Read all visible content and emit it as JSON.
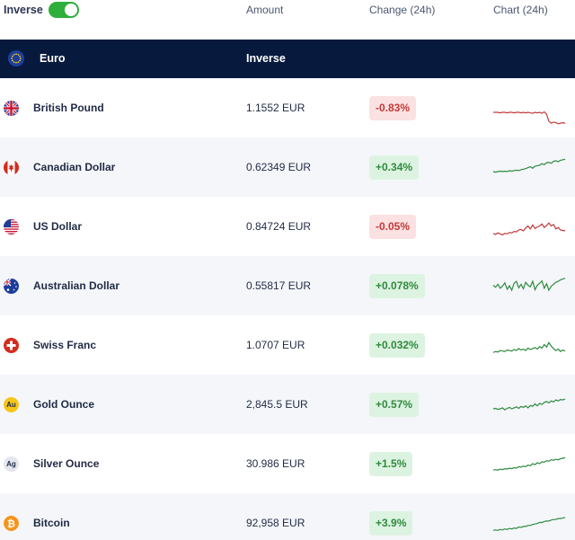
{
  "header": {
    "toggle_label": "Inverse",
    "toggle_on": true,
    "col_amount": "Amount",
    "col_change": "Change (24h)",
    "col_chart": "Chart (24h)"
  },
  "base": {
    "name": "Euro",
    "inverse_label": "Inverse"
  },
  "colors": {
    "navy": "#071a3e",
    "up": "#2e8a3e",
    "down": "#c23a3a",
    "toggle": "#2eaf3c"
  },
  "rows": [
    {
      "name": "British Pound",
      "icon": "uk-flag-icon",
      "amount": "1.1552 EUR",
      "change": "-0.83%",
      "dir": "down",
      "spark": [
        40,
        40,
        40,
        41,
        40,
        40,
        41,
        40,
        40,
        41,
        40,
        40,
        41,
        40,
        41,
        40,
        41,
        42,
        40,
        41,
        40,
        42,
        39,
        44,
        58,
        62,
        60,
        61,
        63,
        62,
        61,
        62
      ]
    },
    {
      "name": "Canadian Dollar",
      "icon": "canada-flag-icon",
      "amount": "0.62349 EUR",
      "change": "+0.34%",
      "dir": "up",
      "spark": [
        40,
        41,
        40,
        39,
        40,
        39,
        40,
        38,
        39,
        38,
        37,
        38,
        36,
        35,
        34,
        32,
        30,
        33,
        29,
        28,
        27,
        24,
        26,
        22,
        21,
        23,
        19,
        18,
        20,
        17,
        16,
        15
      ]
    },
    {
      "name": "US Dollar",
      "icon": "us-flag-icon",
      "amount": "0.84724 EUR",
      "change": "-0.05%",
      "dir": "down",
      "spark": [
        45,
        47,
        44,
        46,
        48,
        45,
        46,
        43,
        44,
        41,
        42,
        38,
        37,
        40,
        34,
        30,
        36,
        28,
        35,
        32,
        30,
        26,
        33,
        29,
        24,
        30,
        27,
        36,
        33,
        38,
        39,
        40
      ]
    },
    {
      "name": "Australian Dollar",
      "icon": "australia-flag-icon",
      "amount": "0.55817 EUR",
      "change": "+0.078%",
      "dir": "up",
      "spark": [
        30,
        34,
        28,
        36,
        32,
        25,
        38,
        31,
        40,
        26,
        22,
        35,
        28,
        37,
        24,
        30,
        33,
        22,
        39,
        30,
        26,
        21,
        36,
        27,
        40,
        32,
        28,
        24,
        22,
        19,
        17,
        16
      ]
    },
    {
      "name": "Swiss Franc",
      "icon": "swiss-flag-icon",
      "amount": "1.0707 EUR",
      "change": "+0.032%",
      "dir": "up",
      "spark": [
        46,
        44,
        45,
        42,
        43,
        44,
        41,
        42,
        43,
        40,
        42,
        38,
        41,
        39,
        42,
        37,
        40,
        38,
        36,
        39,
        34,
        37,
        30,
        35,
        26,
        33,
        38,
        42,
        39,
        44,
        41,
        43
      ]
    },
    {
      "name": "Gold Ounce",
      "icon": "gold-ounce-icon",
      "amount": "2,845.5 EUR",
      "change": "+0.57%",
      "dir": "up",
      "spark": [
        40,
        39,
        41,
        40,
        38,
        42,
        39,
        37,
        40,
        38,
        36,
        39,
        35,
        37,
        34,
        38,
        33,
        35,
        30,
        34,
        29,
        31,
        27,
        25,
        28,
        24,
        26,
        22,
        24,
        21,
        22,
        20
      ]
    },
    {
      "name": "Silver Ounce",
      "icon": "silver-ounce-icon",
      "amount": "30.986 EUR",
      "change": "+1.5%",
      "dir": "up",
      "spark": [
        44,
        43,
        44,
        42,
        43,
        41,
        42,
        40,
        41,
        39,
        40,
        37,
        38,
        36,
        37,
        34,
        35,
        31,
        33,
        29,
        31,
        27,
        28,
        25,
        26,
        23,
        24,
        22,
        23,
        21,
        20,
        19
      ]
    },
    {
      "name": "Bitcoin",
      "icon": "bitcoin-icon",
      "amount": "92,958 EUR",
      "change": "+3.9%",
      "dir": "up",
      "spark": [
        46,
        45,
        46,
        44,
        45,
        43,
        44,
        42,
        43,
        41,
        42,
        39,
        40,
        38,
        38,
        36,
        36,
        34,
        33,
        32,
        30,
        30,
        28,
        27,
        27,
        25,
        24,
        24,
        22,
        22,
        21,
        20
      ]
    }
  ]
}
